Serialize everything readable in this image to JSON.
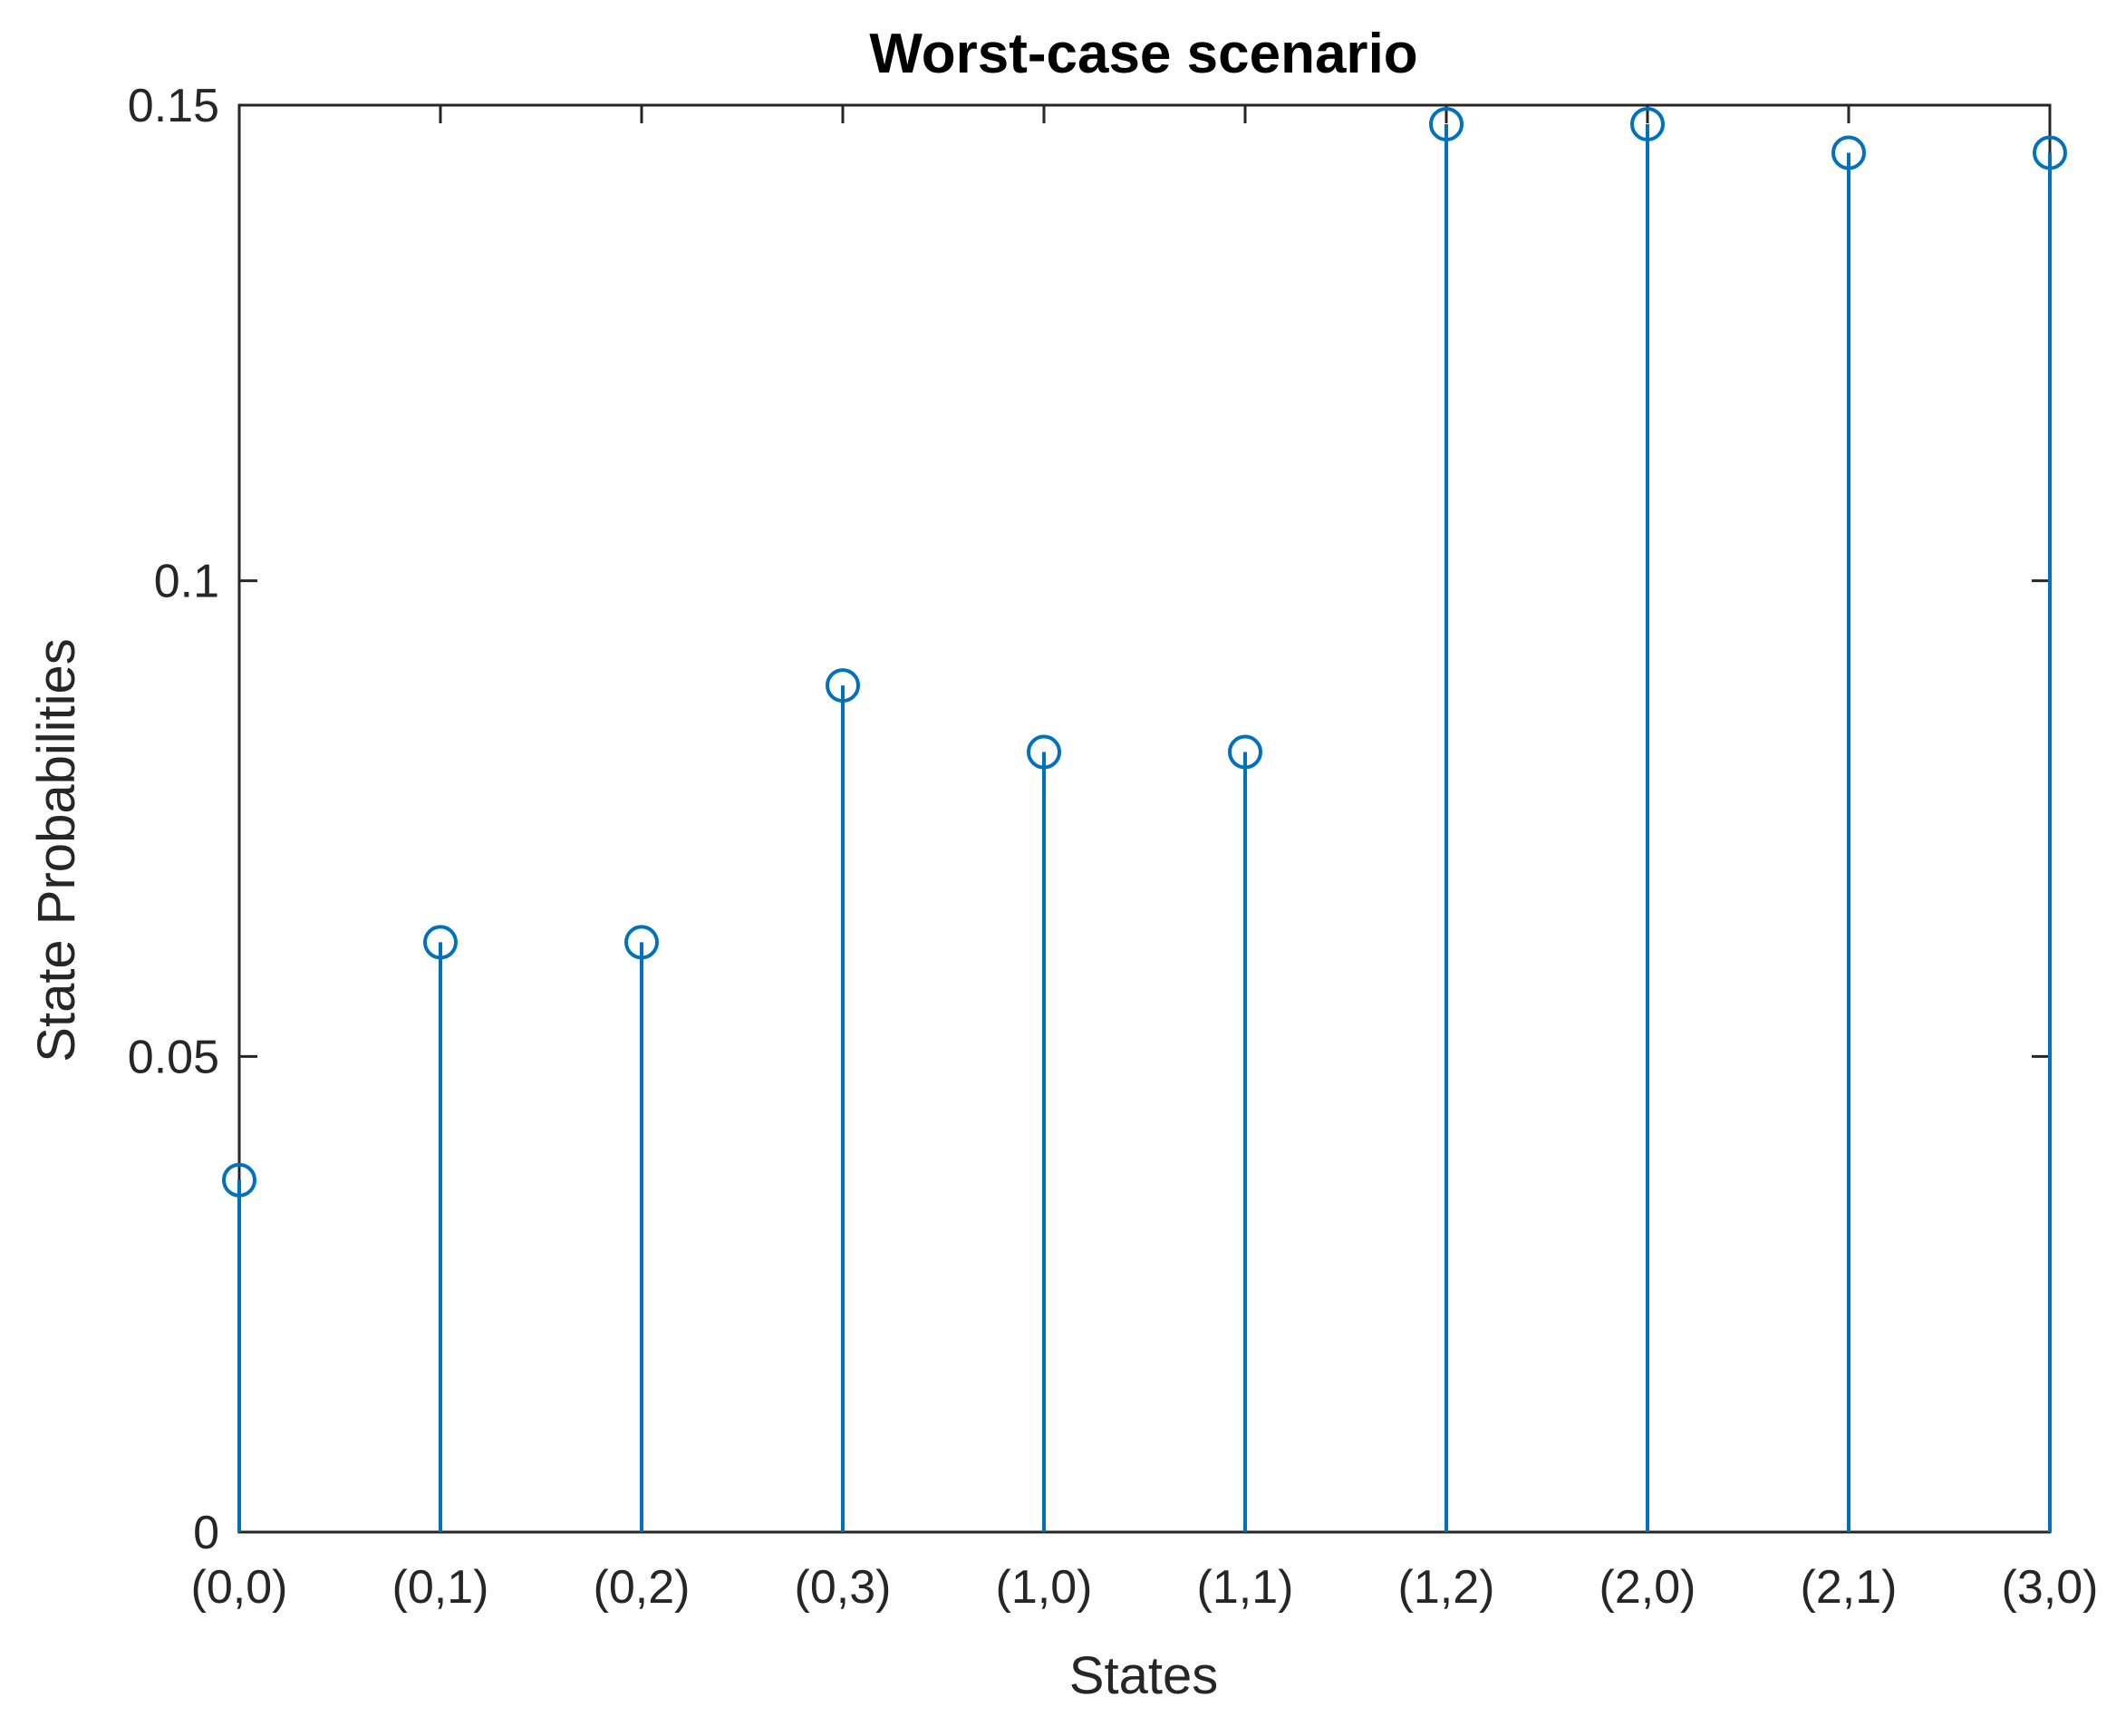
{
  "chart_data": {
    "type": "stem",
    "title": "Worst-case  scenario",
    "xlabel": "States",
    "ylabel": "State Probabilities",
    "categories": [
      "(0,0)",
      "(0,1)",
      "(0,2)",
      "(0,3)",
      "(1,0)",
      "(1,1)",
      "(1,2)",
      "(2,0)",
      "(2,1)",
      "(3,0)"
    ],
    "values": [
      0.037,
      0.062,
      0.062,
      0.089,
      0.082,
      0.082,
      0.148,
      0.148,
      0.145,
      0.145
    ],
    "ylim": [
      0,
      0.15
    ],
    "yticks": [
      0,
      0.05,
      0.1,
      0.15
    ],
    "ytick_labels": [
      "0",
      "0.05",
      "0.1",
      "0.15"
    ],
    "grid": false,
    "legend": "none",
    "colors": {
      "stem": "#0072BD",
      "axis": "#262626",
      "background": "#ffffff"
    }
  }
}
